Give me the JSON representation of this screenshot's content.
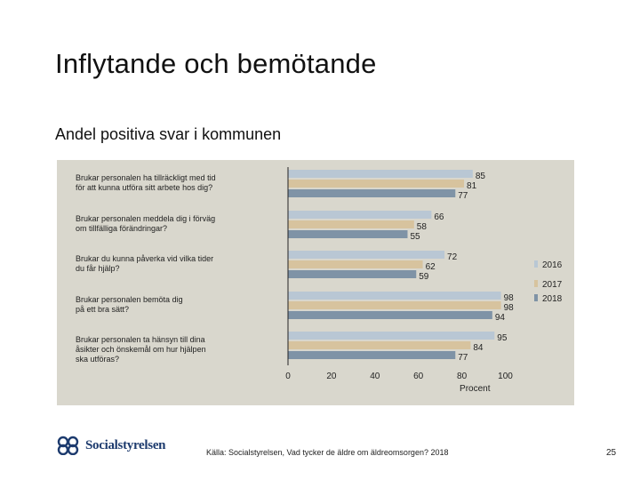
{
  "slide": {
    "title": "Inflytande och bemötande",
    "subtitle": "Andel positiva svar i kommunen",
    "source": "Källa: Socialstyrelsen, Vad tycker de äldre om äldreomsorgen? 2018",
    "page_number": "25",
    "logo_text": "Socialstyrelsen"
  },
  "colors": {
    "background": "#ffffff",
    "chart_background": "#d9d7cd",
    "series_2016": "#b9c7d4",
    "series_2017": "#d7c39e",
    "series_2018": "#7f93a6"
  },
  "chart_data": {
    "type": "bar",
    "orientation": "horizontal",
    "categories": [
      [
        "Brukar personalen ha tillräckligt med tid",
        "för att kunna utföra sitt arbete hos dig?"
      ],
      [
        "Brukar personalen meddela dig i förväg",
        "om tillfälliga förändringar?"
      ],
      [
        "Brukar du kunna påverka vid vilka tider",
        "du får hjälp?"
      ],
      [
        "Brukar personalen bemöta dig",
        "på ett bra sätt?"
      ],
      [
        "Brukar personalen ta hänsyn till dina",
        "åsikter och önskemål om hur hjälpen",
        "ska utföras?"
      ]
    ],
    "series": [
      {
        "name": "2016",
        "values": [
          85,
          66,
          72,
          98,
          95
        ]
      },
      {
        "name": "2017",
        "values": [
          81,
          58,
          62,
          98,
          84
        ]
      },
      {
        "name": "2018",
        "values": [
          77,
          55,
          59,
          94,
          77
        ]
      }
    ],
    "xlabel": "Procent",
    "xlim": [
      0,
      100
    ],
    "xticks": [
      0,
      20,
      40,
      60,
      80,
      100
    ],
    "legend": "right"
  }
}
